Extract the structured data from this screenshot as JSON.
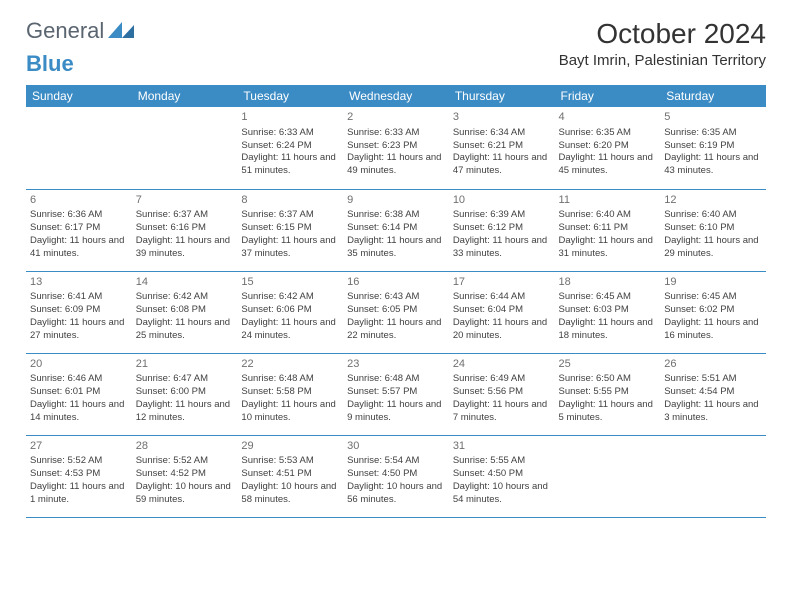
{
  "logo": {
    "general": "General",
    "blue": "Blue"
  },
  "title": "October 2024",
  "location": "Bayt Imrin, Palestinian Territory",
  "colors": {
    "header_bg": "#3b8bc4",
    "header_fg": "#ffffff",
    "text": "#414141",
    "border": "#3b8bc4",
    "logo_gray": "#5a6570",
    "logo_blue": "#3b8bc4"
  },
  "dayNames": [
    "Sunday",
    "Monday",
    "Tuesday",
    "Wednesday",
    "Thursday",
    "Friday",
    "Saturday"
  ],
  "firstWeekday": 2,
  "daysInMonth": 31,
  "days": {
    "1": {
      "sunrise": "6:33 AM",
      "sunset": "6:24 PM",
      "daylight": "11 hours and 51 minutes."
    },
    "2": {
      "sunrise": "6:33 AM",
      "sunset": "6:23 PM",
      "daylight": "11 hours and 49 minutes."
    },
    "3": {
      "sunrise": "6:34 AM",
      "sunset": "6:21 PM",
      "daylight": "11 hours and 47 minutes."
    },
    "4": {
      "sunrise": "6:35 AM",
      "sunset": "6:20 PM",
      "daylight": "11 hours and 45 minutes."
    },
    "5": {
      "sunrise": "6:35 AM",
      "sunset": "6:19 PM",
      "daylight": "11 hours and 43 minutes."
    },
    "6": {
      "sunrise": "6:36 AM",
      "sunset": "6:17 PM",
      "daylight": "11 hours and 41 minutes."
    },
    "7": {
      "sunrise": "6:37 AM",
      "sunset": "6:16 PM",
      "daylight": "11 hours and 39 minutes."
    },
    "8": {
      "sunrise": "6:37 AM",
      "sunset": "6:15 PM",
      "daylight": "11 hours and 37 minutes."
    },
    "9": {
      "sunrise": "6:38 AM",
      "sunset": "6:14 PM",
      "daylight": "11 hours and 35 minutes."
    },
    "10": {
      "sunrise": "6:39 AM",
      "sunset": "6:12 PM",
      "daylight": "11 hours and 33 minutes."
    },
    "11": {
      "sunrise": "6:40 AM",
      "sunset": "6:11 PM",
      "daylight": "11 hours and 31 minutes."
    },
    "12": {
      "sunrise": "6:40 AM",
      "sunset": "6:10 PM",
      "daylight": "11 hours and 29 minutes."
    },
    "13": {
      "sunrise": "6:41 AM",
      "sunset": "6:09 PM",
      "daylight": "11 hours and 27 minutes."
    },
    "14": {
      "sunrise": "6:42 AM",
      "sunset": "6:08 PM",
      "daylight": "11 hours and 25 minutes."
    },
    "15": {
      "sunrise": "6:42 AM",
      "sunset": "6:06 PM",
      "daylight": "11 hours and 24 minutes."
    },
    "16": {
      "sunrise": "6:43 AM",
      "sunset": "6:05 PM",
      "daylight": "11 hours and 22 minutes."
    },
    "17": {
      "sunrise": "6:44 AM",
      "sunset": "6:04 PM",
      "daylight": "11 hours and 20 minutes."
    },
    "18": {
      "sunrise": "6:45 AM",
      "sunset": "6:03 PM",
      "daylight": "11 hours and 18 minutes."
    },
    "19": {
      "sunrise": "6:45 AM",
      "sunset": "6:02 PM",
      "daylight": "11 hours and 16 minutes."
    },
    "20": {
      "sunrise": "6:46 AM",
      "sunset": "6:01 PM",
      "daylight": "11 hours and 14 minutes."
    },
    "21": {
      "sunrise": "6:47 AM",
      "sunset": "6:00 PM",
      "daylight": "11 hours and 12 minutes."
    },
    "22": {
      "sunrise": "6:48 AM",
      "sunset": "5:58 PM",
      "daylight": "11 hours and 10 minutes."
    },
    "23": {
      "sunrise": "6:48 AM",
      "sunset": "5:57 PM",
      "daylight": "11 hours and 9 minutes."
    },
    "24": {
      "sunrise": "6:49 AM",
      "sunset": "5:56 PM",
      "daylight": "11 hours and 7 minutes."
    },
    "25": {
      "sunrise": "6:50 AM",
      "sunset": "5:55 PM",
      "daylight": "11 hours and 5 minutes."
    },
    "26": {
      "sunrise": "5:51 AM",
      "sunset": "4:54 PM",
      "daylight": "11 hours and 3 minutes."
    },
    "27": {
      "sunrise": "5:52 AM",
      "sunset": "4:53 PM",
      "daylight": "11 hours and 1 minute."
    },
    "28": {
      "sunrise": "5:52 AM",
      "sunset": "4:52 PM",
      "daylight": "10 hours and 59 minutes."
    },
    "29": {
      "sunrise": "5:53 AM",
      "sunset": "4:51 PM",
      "daylight": "10 hours and 58 minutes."
    },
    "30": {
      "sunrise": "5:54 AM",
      "sunset": "4:50 PM",
      "daylight": "10 hours and 56 minutes."
    },
    "31": {
      "sunrise": "5:55 AM",
      "sunset": "4:50 PM",
      "daylight": "10 hours and 54 minutes."
    }
  },
  "labels": {
    "sunrise": "Sunrise: ",
    "sunset": "Sunset: ",
    "daylight": "Daylight: "
  }
}
